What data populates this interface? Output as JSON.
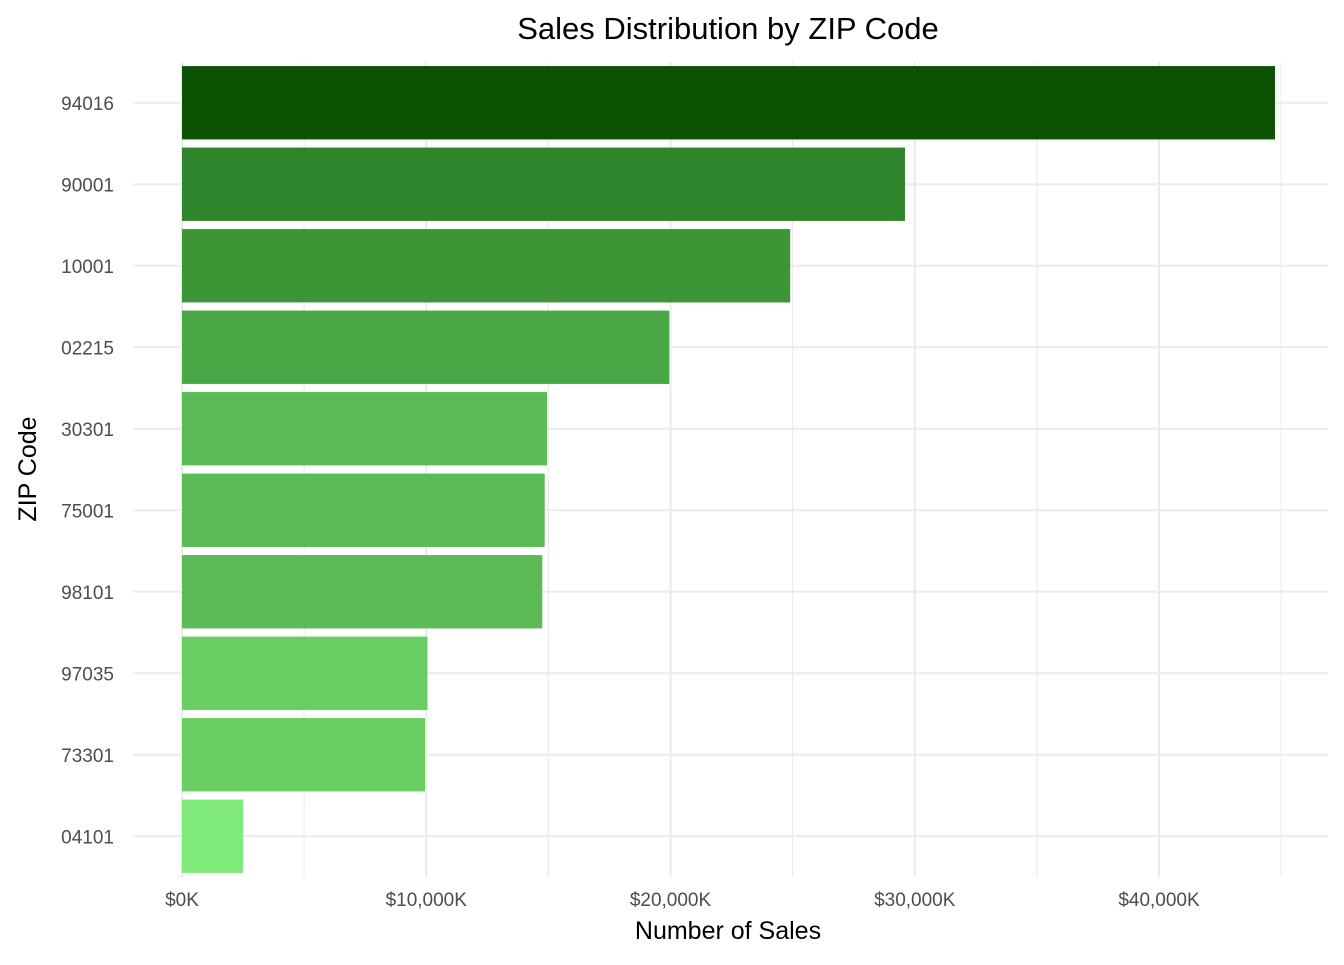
{
  "chart_data": {
    "type": "bar",
    "orientation": "horizontal",
    "title": "Sales Distribution by ZIP Code",
    "xlabel": "Number of Sales",
    "ylabel": "ZIP Code",
    "categories": [
      "94016",
      "90001",
      "10001",
      "02215",
      "30301",
      "75001",
      "98101",
      "97035",
      "73301",
      "04101"
    ],
    "values": [
      44750,
      29600,
      24900,
      19950,
      14950,
      14850,
      14750,
      10050,
      9950,
      2500
    ],
    "colors": [
      "#0b5302",
      "#2f852b",
      "#3d9535",
      "#4aa745",
      "#5bbb56",
      "#5bbb56",
      "#5bbb56",
      "#69cd64",
      "#69cd64",
      "#80eb7c"
    ],
    "xlim": [
      0,
      47000
    ],
    "x_ticks": [
      0,
      10000,
      20000,
      30000,
      40000
    ],
    "x_tick_labels": [
      "$0K",
      "$10,000K",
      "$20,000K",
      "$30,000K",
      "$40,000K"
    ],
    "grid": true,
    "legend": "none"
  }
}
